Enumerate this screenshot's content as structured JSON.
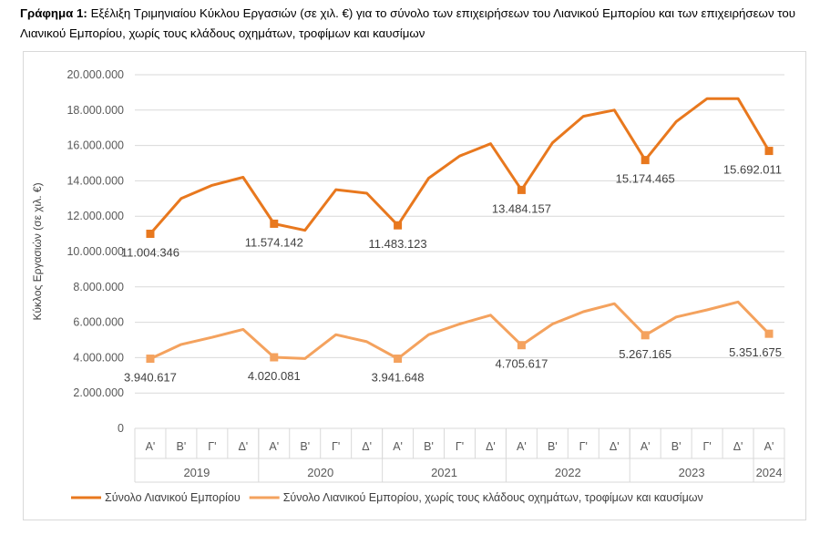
{
  "caption": {
    "label": "Γράφημα 1:",
    "text": "Εξέλιξη Τριμηνιαίου Κύκλου Εργασιών (σε χιλ. €) για το σύνολο των επιχειρήσεων του Λιανικού Εμπορίου και των επιχειρήσεων του Λιανικού Εμπορίου, χωρίς τους κλάδους οχημάτων, τροφίμων και καυσίμων"
  },
  "chart_data": {
    "type": "line",
    "ylabel": "Κύκλος Εργασιών (σε χιλ. €)",
    "xlabel": "",
    "ylim": [
      0,
      20000000
    ],
    "yticks": [
      0,
      2000000,
      4000000,
      6000000,
      8000000,
      10000000,
      12000000,
      14000000,
      16000000,
      18000000,
      20000000
    ],
    "ytick_labels": [
      "0",
      "2.000.000",
      "4.000.000",
      "6.000.000",
      "8.000.000",
      "10.000.000",
      "12.000.000",
      "14.000.000",
      "16.000.000",
      "18.000.000",
      "20.000.000"
    ],
    "grid": true,
    "legend_position": "bottom",
    "categories": [
      "Α'",
      "Β'",
      "Γ'",
      "Δ'",
      "Α'",
      "Β'",
      "Γ'",
      "Δ'",
      "Α'",
      "Β'",
      "Γ'",
      "Δ'",
      "Α'",
      "Β'",
      "Γ'",
      "Δ'",
      "Α'",
      "Β'",
      "Γ'",
      "Δ'",
      "Α'"
    ],
    "groups": [
      {
        "label": "2019",
        "count": 4
      },
      {
        "label": "2020",
        "count": 4
      },
      {
        "label": "2021",
        "count": 4
      },
      {
        "label": "2022",
        "count": 4
      },
      {
        "label": "2023",
        "count": 4
      },
      {
        "label": "2024",
        "count": 1
      }
    ],
    "series": [
      {
        "name": "Σύνολο Λιανικού Εμπορίου",
        "color": "#e8781e",
        "values": [
          11004346,
          13000000,
          13750000,
          14200000,
          11574142,
          11200000,
          13500000,
          13300000,
          11483123,
          14150000,
          15400000,
          16100000,
          13484157,
          16150000,
          17650000,
          18000000,
          15174465,
          17350000,
          18650000,
          18650000,
          15692011
        ],
        "labels": [
          {
            "index": 0,
            "text": "11.004.346",
            "pos": "below"
          },
          {
            "index": 4,
            "text": "11.574.142",
            "pos": "below"
          },
          {
            "index": 8,
            "text": "11.483.123",
            "pos": "below"
          },
          {
            "index": 12,
            "text": "13.484.157",
            "pos": "below"
          },
          {
            "index": 16,
            "text": "15.174.465",
            "pos": "below"
          },
          {
            "index": 20,
            "text": "15.692.011",
            "pos": "below"
          }
        ]
      },
      {
        "name": "Σύνολο Λιανικού Εμπορίου, χωρίς τους κλάδους οχημάτων, τροφίμων και καυσίμων",
        "color": "#f4a25e",
        "values": [
          3940617,
          4750000,
          5150000,
          5600000,
          4020081,
          3950000,
          5300000,
          4900000,
          3941648,
          5300000,
          5900000,
          6400000,
          4705617,
          5900000,
          6600000,
          7050000,
          5267165,
          6300000,
          6700000,
          7150000,
          5351675
        ],
        "labels": [
          {
            "index": 0,
            "text": "3.940.617",
            "pos": "below"
          },
          {
            "index": 4,
            "text": "4.020.081",
            "pos": "below"
          },
          {
            "index": 8,
            "text": "3.941.648",
            "pos": "below"
          },
          {
            "index": 12,
            "text": "4.705.617",
            "pos": "below"
          },
          {
            "index": 16,
            "text": "5.267.165",
            "pos": "below"
          },
          {
            "index": 20,
            "text": "5.351.675",
            "pos": "below"
          }
        ]
      }
    ]
  }
}
